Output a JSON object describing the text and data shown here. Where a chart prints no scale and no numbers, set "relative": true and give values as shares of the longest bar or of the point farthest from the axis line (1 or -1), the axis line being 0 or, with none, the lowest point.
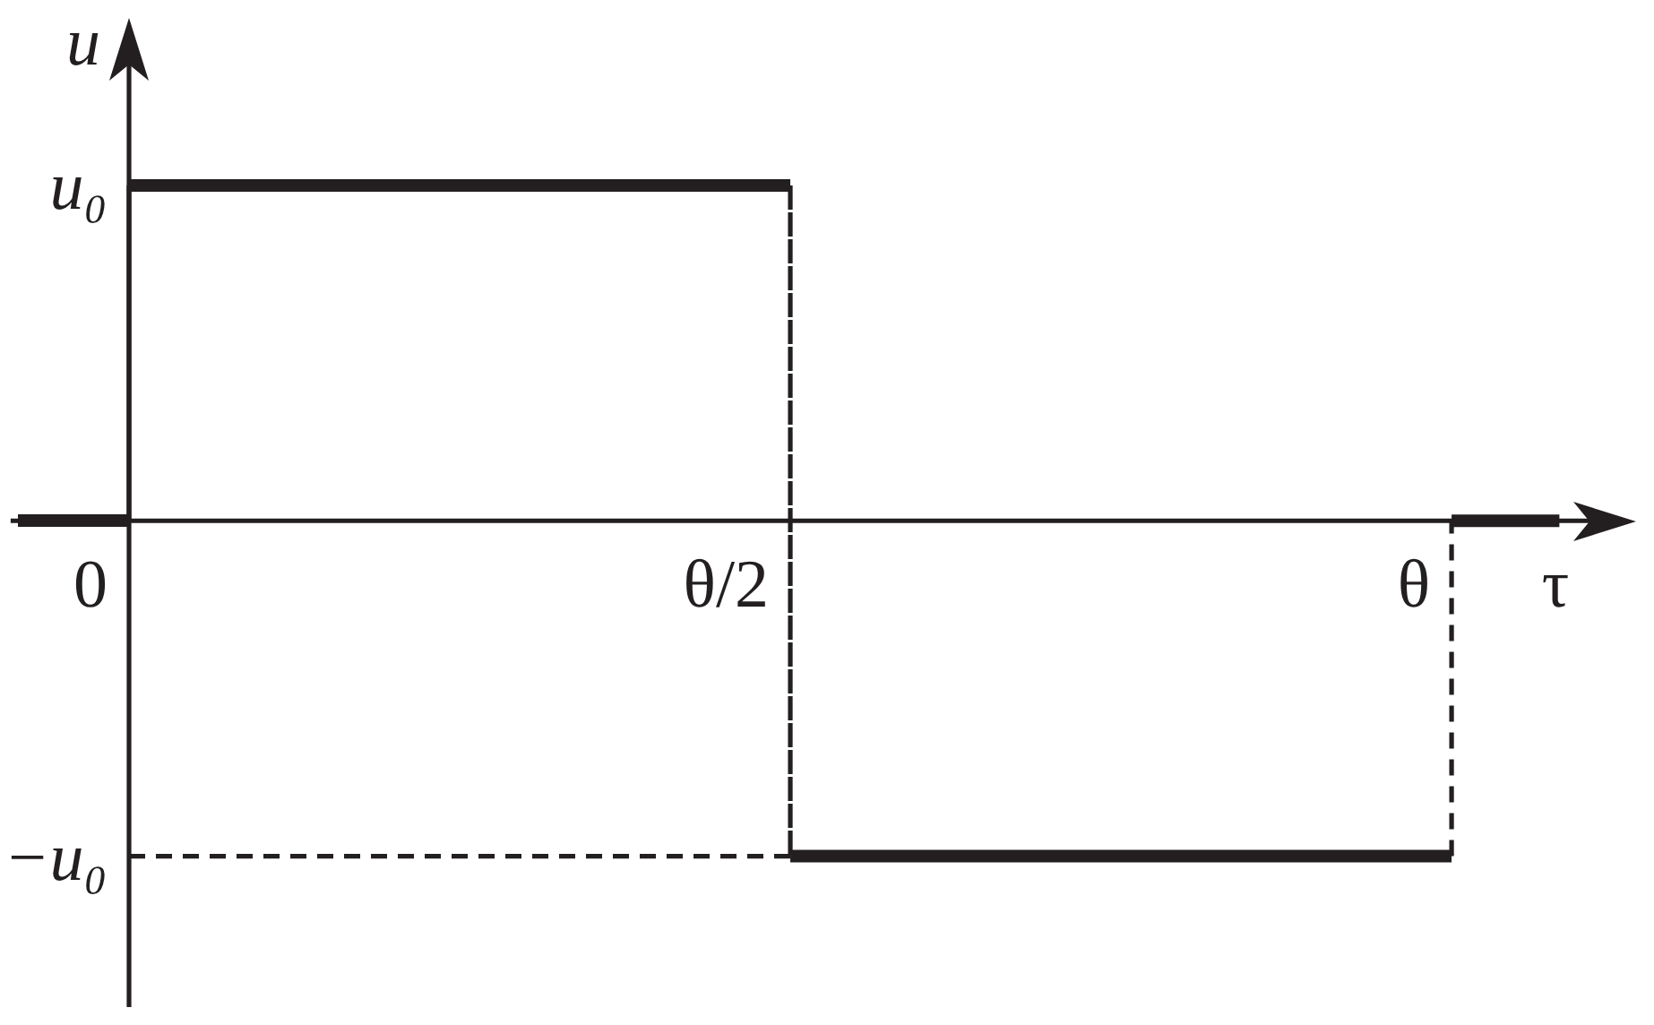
{
  "chart_data": {
    "type": "step",
    "relative": true,
    "xlabel": "τ",
    "ylabel": "u",
    "categories": [
      "0",
      "θ/2",
      "θ"
    ],
    "values": [
      1,
      -1,
      0
    ],
    "color": "#231f20",
    "ref_lines": [
      {
        "axis": "x",
        "value": "0",
        "line_style": "solid"
      },
      {
        "axis": "y",
        "value": -1,
        "line_style": "dashed"
      }
    ],
    "annotations": [
      "u₀",
      "−u₀"
    ]
  }
}
